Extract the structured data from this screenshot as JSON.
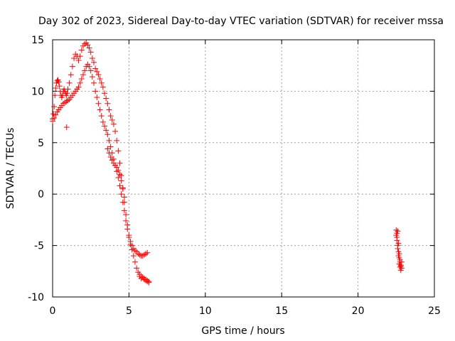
{
  "chart_data": {
    "type": "scatter",
    "title": "Day 302 of 2023, Sidereal Day-to-day VTEC variation (SDTVAR) for receiver mssa",
    "xlabel": "GPS time / hours",
    "ylabel": "SDTVAR / TECUs",
    "xlim": [
      0,
      25
    ],
    "ylim": [
      -10,
      15
    ],
    "xticks": [
      0,
      5,
      10,
      15,
      20,
      25
    ],
    "yticks": [
      -10,
      -5,
      0,
      5,
      10,
      15
    ],
    "grid": true,
    "marker": "+",
    "series": [
      {
        "name": "SDTVAR",
        "color": "#ff0000",
        "x": [
          0.0,
          0.05,
          0.1,
          0.15,
          0.2,
          0.25,
          0.3,
          0.35,
          0.4,
          0.45,
          0.5,
          0.55,
          0.6,
          0.65,
          0.7,
          0.75,
          0.8,
          0.85,
          0.9,
          0.95,
          1.0,
          1.1,
          1.2,
          1.3,
          1.4,
          1.5,
          1.6,
          1.7,
          1.8,
          1.9,
          2.0,
          2.1,
          2.2,
          2.3,
          2.4,
          2.5,
          2.6,
          2.7,
          2.8,
          2.9,
          3.0,
          3.1,
          3.2,
          3.3,
          3.4,
          3.5,
          3.6,
          3.7,
          3.8,
          3.9,
          4.0,
          4.1,
          4.2,
          4.3,
          4.4,
          4.5,
          4.6,
          4.7,
          4.8,
          4.9,
          5.0,
          5.1,
          5.2,
          5.3,
          5.4,
          5.5,
          5.6,
          5.7,
          5.8,
          5.9,
          6.0,
          6.1,
          6.2,
          0.0,
          0.1,
          0.2,
          0.3,
          0.4,
          0.5,
          0.6,
          0.7,
          0.8,
          0.9,
          1.0,
          1.1,
          1.2,
          1.3,
          1.4,
          1.5,
          1.6,
          1.7,
          1.8,
          1.9,
          2.0,
          2.1,
          2.2,
          2.3,
          2.4,
          2.5,
          2.6,
          2.7,
          2.8,
          2.9,
          3.0,
          3.1,
          3.2,
          3.3,
          3.4,
          3.5,
          3.6,
          3.7,
          3.8,
          3.9,
          4.0,
          4.1,
          4.2,
          4.3,
          4.4,
          4.5,
          4.6,
          4.7,
          4.8,
          4.9,
          5.0,
          5.1,
          5.2,
          5.3,
          5.4,
          5.5,
          5.6,
          5.7,
          5.8,
          5.9,
          6.0,
          6.1,
          6.2,
          6.3,
          0.92,
          3.6,
          3.7,
          3.8,
          3.9,
          4.0,
          4.1,
          4.2,
          4.3,
          4.4,
          4.5,
          4.6,
          4.7,
          5.7,
          5.8,
          5.9,
          6.0,
          6.1,
          6.2,
          6.3,
          22.5,
          22.55,
          22.6,
          22.65,
          22.7,
          22.75,
          22.8,
          22.85,
          22.5,
          22.55,
          22.6,
          22.65,
          22.7,
          22.75,
          22.8,
          22.85,
          22.55,
          22.6,
          22.65,
          22.7,
          22.75,
          22.8
        ],
        "y": [
          7.3,
          7.8,
          8.5,
          9.6,
          10.3,
          10.8,
          11.0,
          11.1,
          10.9,
          10.5,
          10.0,
          9.6,
          9.4,
          9.6,
          10.0,
          10.2,
          10.0,
          9.8,
          9.6,
          9.8,
          10.2,
          10.8,
          11.6,
          12.4,
          13.2,
          13.6,
          13.4,
          13.0,
          13.4,
          14.0,
          14.4,
          14.6,
          14.7,
          14.5,
          14.2,
          13.8,
          13.2,
          12.8,
          12.2,
          11.9,
          11.6,
          11.2,
          10.8,
          10.4,
          9.8,
          9.3,
          8.8,
          8.2,
          7.6,
          7.2,
          6.8,
          6.1,
          5.2,
          4.2,
          3.0,
          1.8,
          0.5,
          -0.8,
          -2.0,
          -3.0,
          -4.0,
          -4.6,
          -5.0,
          -5.3,
          -5.5,
          -5.6,
          -5.8,
          -5.9,
          -6.0,
          -6.0,
          -5.9,
          -5.8,
          -5.7,
          7.1,
          7.4,
          7.7,
          8.0,
          8.2,
          8.4,
          8.6,
          8.8,
          8.9,
          9.0,
          9.1,
          9.2,
          9.4,
          9.6,
          9.8,
          10.0,
          10.2,
          10.4,
          10.8,
          11.2,
          11.6,
          12.0,
          12.4,
          12.6,
          12.4,
          12.0,
          11.4,
          10.8,
          10.0,
          9.4,
          8.8,
          8.2,
          7.6,
          7.0,
          6.6,
          6.2,
          5.8,
          5.2,
          4.6,
          4.0,
          3.4,
          2.8,
          2.2,
          1.6,
          0.8,
          0.0,
          -0.8,
          -1.6,
          -2.6,
          -3.4,
          -4.2,
          -4.9,
          -5.4,
          -6.0,
          -6.6,
          -7.2,
          -7.6,
          -7.8,
          -8.0,
          -8.1,
          -8.2,
          -8.3,
          -8.4,
          -8.5,
          6.5,
          4.4,
          4.0,
          3.6,
          3.3,
          3.0,
          2.8,
          2.6,
          2.3,
          1.9,
          1.3,
          0.6,
          -0.3,
          -8.0,
          -8.2,
          -8.1,
          -8.3,
          -8.4,
          -8.5,
          -8.6,
          -3.5,
          -4.2,
          -5.0,
          -5.6,
          -6.2,
          -6.6,
          -7.0,
          -7.2,
          -4.0,
          -4.5,
          -5.3,
          -6.0,
          -6.8,
          -7.1,
          -6.9,
          -6.6,
          -3.8,
          -3.6,
          -4.8,
          -5.8,
          -6.4,
          -7.4
        ]
      }
    ]
  }
}
